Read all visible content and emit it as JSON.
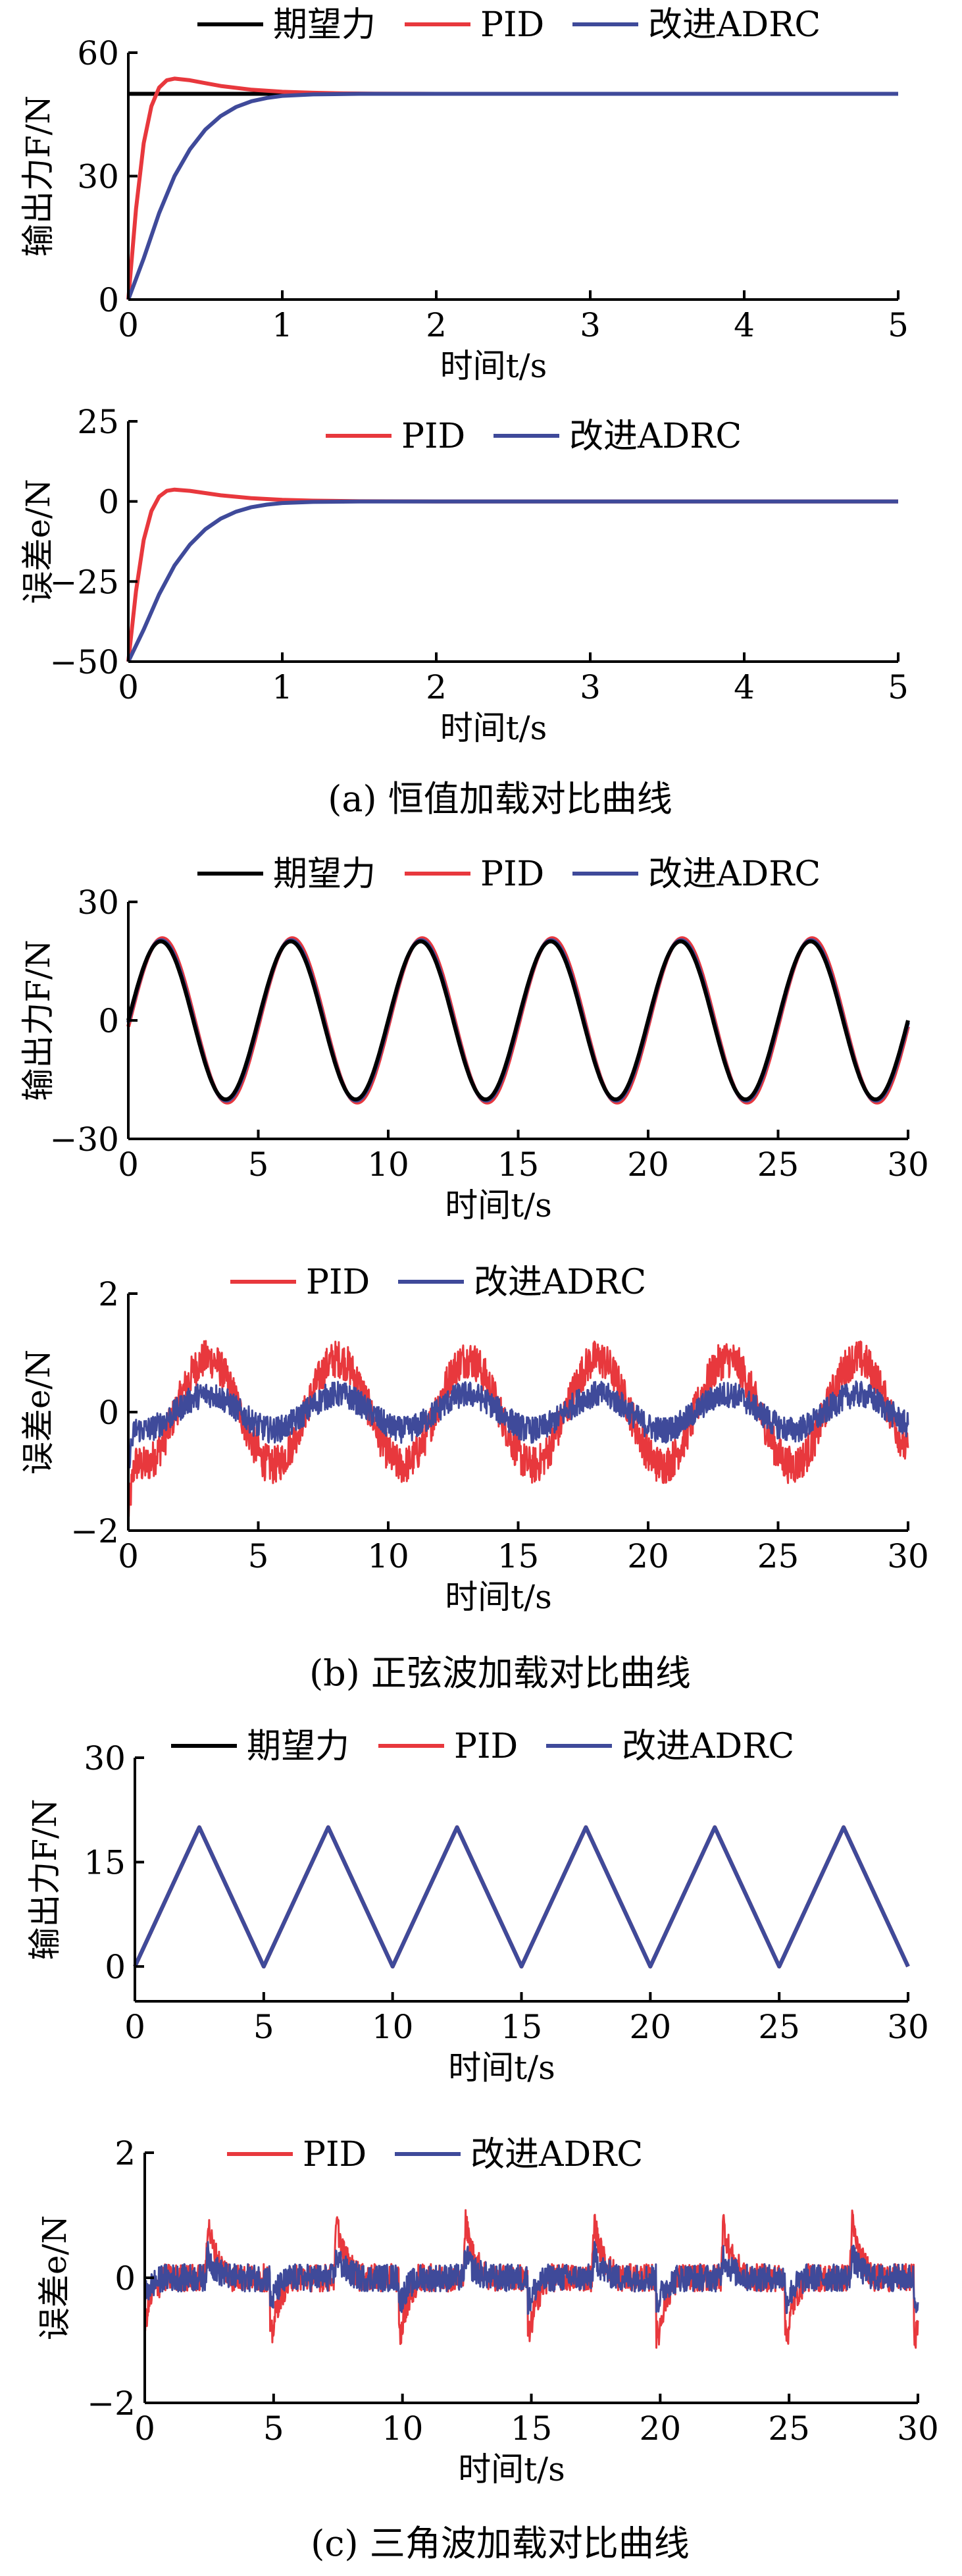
{
  "colors": {
    "desired": "#000000",
    "pid": "#e8383d",
    "adrc": "#3f4a9a"
  },
  "captions": [
    "(a) 恒值加载对比曲线",
    "(b) 正弦波加载对比曲线",
    "(c) 三角波加载对比曲线"
  ],
  "chart_data": [
    {
      "type": "line",
      "id": "a-force",
      "ylabel": "输出力F/N",
      "xlabel": "时间t/s",
      "xlim": [
        0,
        5
      ],
      "ylim": [
        0,
        60
      ],
      "xticks": [
        0,
        1,
        2,
        3,
        4,
        5
      ],
      "yticks": [
        0,
        30,
        60
      ],
      "legend": [
        "期望力",
        "PID",
        "改进ADRC"
      ],
      "legend_position": "top",
      "series": [
        {
          "name": "期望力",
          "color": "#000000",
          "x": [
            0,
            5
          ],
          "y": [
            50,
            50
          ]
        },
        {
          "name": "PID",
          "color": "#e8383d",
          "x": [
            0,
            0.05,
            0.1,
            0.15,
            0.2,
            0.25,
            0.3,
            0.4,
            0.5,
            0.6,
            0.8,
            1.0,
            1.2,
            1.4,
            1.6,
            2.0,
            3.0,
            5.0
          ],
          "y": [
            0,
            22,
            38,
            47,
            51.5,
            53.3,
            53.7,
            53.3,
            52.6,
            51.9,
            51.0,
            50.5,
            50.25,
            50.1,
            50.05,
            50,
            50,
            50
          ]
        },
        {
          "name": "改进ADRC",
          "color": "#3f4a9a",
          "x": [
            0,
            0.1,
            0.2,
            0.3,
            0.4,
            0.5,
            0.6,
            0.7,
            0.8,
            0.9,
            1.0,
            1.2,
            1.5,
            2.0,
            5.0
          ],
          "y": [
            0,
            10,
            21,
            30,
            36.5,
            41.3,
            44.6,
            46.8,
            48.2,
            49.0,
            49.5,
            49.85,
            50,
            50,
            50
          ]
        }
      ]
    },
    {
      "type": "line",
      "id": "a-error",
      "ylabel": "误差e/N",
      "xlabel": "时间t/s",
      "xlim": [
        0,
        5
      ],
      "ylim": [
        -50,
        25
      ],
      "xticks": [
        0,
        1,
        2,
        3,
        4,
        5
      ],
      "yticks": [
        -50,
        -25,
        0,
        25
      ],
      "ytick_labels": [
        "−50",
        "−25",
        "0",
        "25"
      ],
      "legend": [
        "PID",
        "改进ADRC"
      ],
      "legend_position": "top",
      "series": [
        {
          "name": "PID",
          "color": "#e8383d",
          "x": [
            0,
            0.05,
            0.1,
            0.15,
            0.2,
            0.25,
            0.3,
            0.4,
            0.5,
            0.6,
            0.8,
            1.0,
            1.2,
            1.5,
            2.0,
            5.0
          ],
          "y": [
            -50,
            -28,
            -12,
            -3,
            1.5,
            3.3,
            3.7,
            3.3,
            2.6,
            1.9,
            1.0,
            0.5,
            0.25,
            0.05,
            0,
            0
          ]
        },
        {
          "name": "改进ADRC",
          "color": "#3f4a9a",
          "x": [
            0,
            0.1,
            0.2,
            0.3,
            0.4,
            0.5,
            0.6,
            0.7,
            0.8,
            0.9,
            1.0,
            1.2,
            1.5,
            2.0,
            5.0
          ],
          "y": [
            -50,
            -40,
            -29,
            -20,
            -13.5,
            -8.7,
            -5.4,
            -3.2,
            -1.8,
            -1.0,
            -0.5,
            -0.15,
            0,
            0,
            0
          ]
        }
      ]
    },
    {
      "type": "line",
      "id": "b-force",
      "ylabel": "输出力F/N",
      "xlabel": "时间t/s",
      "xlim": [
        0,
        30
      ],
      "ylim": [
        -30,
        30
      ],
      "xticks": [
        0,
        5,
        10,
        15,
        20,
        25,
        30
      ],
      "yticks": [
        -30,
        0,
        30
      ],
      "ytick_labels": [
        "−30",
        "0",
        "30"
      ],
      "legend": [
        "期望力",
        "PID",
        "改进ADRC"
      ],
      "legend_position": "top",
      "wave": "sine",
      "period": 5,
      "amplitude": 20,
      "series": [
        {
          "name": "PID",
          "color": "#e8383d",
          "amplitude": 20.8,
          "lag": 0.06
        },
        {
          "name": "改进ADRC",
          "color": "#3f4a9a",
          "amplitude": 20.3,
          "lag": 0.02
        },
        {
          "name": "期望力",
          "color": "#000000",
          "amplitude": 20,
          "lag": 0
        }
      ]
    },
    {
      "type": "line",
      "id": "b-error",
      "ylabel": "误差e/N",
      "xlabel": "时间t/s",
      "xlim": [
        0,
        30
      ],
      "ylim": [
        -2,
        2
      ],
      "xticks": [
        0,
        5,
        10,
        15,
        20,
        25,
        30
      ],
      "yticks": [
        -2,
        0,
        2
      ],
      "ytick_labels": [
        "−2",
        "0",
        "2"
      ],
      "legend": [
        "PID",
        "改进ADRC"
      ],
      "legend_position": "top",
      "series": [
        {
          "name": "PID",
          "color": "#e8383d",
          "base_amplitude": 0.9,
          "period": 5,
          "phase_deg": 230,
          "noise": 0.32
        },
        {
          "name": "改进ADRC",
          "color": "#3f4a9a",
          "base_amplitude": 0.3,
          "period": 5,
          "phase_deg": 230,
          "noise": 0.22
        }
      ]
    },
    {
      "type": "line",
      "id": "c-force",
      "ylabel": "输出力F/N",
      "xlabel": "时间t/s",
      "xlim": [
        0,
        30
      ],
      "ylim": [
        -5,
        30
      ],
      "xticks": [
        0,
        5,
        10,
        15,
        20,
        25,
        30
      ],
      "yticks": [
        0,
        15,
        30
      ],
      "legend": [
        "期望力",
        "PID",
        "改进ADRC"
      ],
      "legend_position": "top",
      "wave": "triangle",
      "period": 5,
      "peak": 20,
      "series": [
        {
          "name": "期望力",
          "color": "#000000"
        },
        {
          "name": "PID",
          "color": "#e8383d"
        },
        {
          "name": "改进ADRC",
          "color": "#3f4a9a"
        }
      ]
    },
    {
      "type": "line",
      "id": "c-error",
      "ylabel": "误差e/N",
      "xlabel": "时间t/s",
      "xlim": [
        0,
        30
      ],
      "ylim": [
        -2,
        2
      ],
      "xticks": [
        0,
        5,
        10,
        15,
        20,
        25,
        30
      ],
      "yticks": [
        -2,
        0,
        2
      ],
      "ytick_labels": [
        "−2",
        "0",
        "2"
      ],
      "legend": [
        "PID",
        "改进ADRC"
      ],
      "legend_position": "top",
      "series": [
        {
          "name": "PID",
          "color": "#e8383d",
          "noise": 0.22,
          "spike": 1.0
        },
        {
          "name": "改进ADRC",
          "color": "#3f4a9a",
          "noise": 0.22,
          "spike": 0.4
        }
      ]
    }
  ]
}
